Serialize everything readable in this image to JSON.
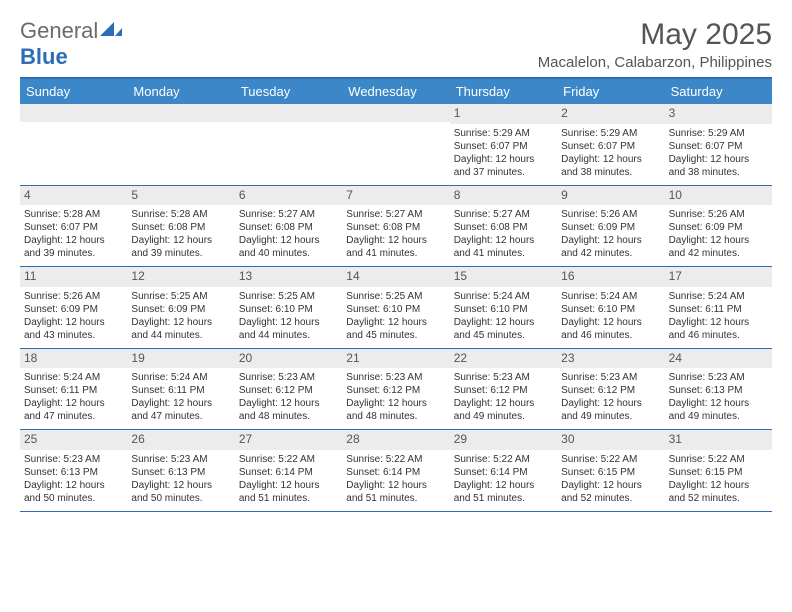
{
  "logo": {
    "general": "General",
    "blue": "Blue"
  },
  "title": "May 2025",
  "location": "Macalelon, Calabarzon, Philippines",
  "colors": {
    "header_bg": "#3b87c8",
    "border": "#2a6fb5",
    "daynum_bg": "#ececec",
    "text": "#333333"
  },
  "day_names": [
    "Sunday",
    "Monday",
    "Tuesday",
    "Wednesday",
    "Thursday",
    "Friday",
    "Saturday"
  ],
  "weeks": [
    [
      {
        "n": "",
        "sr": "",
        "ss": "",
        "dl": ""
      },
      {
        "n": "",
        "sr": "",
        "ss": "",
        "dl": ""
      },
      {
        "n": "",
        "sr": "",
        "ss": "",
        "dl": ""
      },
      {
        "n": "",
        "sr": "",
        "ss": "",
        "dl": ""
      },
      {
        "n": "1",
        "sr": "Sunrise: 5:29 AM",
        "ss": "Sunset: 6:07 PM",
        "dl": "Daylight: 12 hours and 37 minutes."
      },
      {
        "n": "2",
        "sr": "Sunrise: 5:29 AM",
        "ss": "Sunset: 6:07 PM",
        "dl": "Daylight: 12 hours and 38 minutes."
      },
      {
        "n": "3",
        "sr": "Sunrise: 5:29 AM",
        "ss": "Sunset: 6:07 PM",
        "dl": "Daylight: 12 hours and 38 minutes."
      }
    ],
    [
      {
        "n": "4",
        "sr": "Sunrise: 5:28 AM",
        "ss": "Sunset: 6:07 PM",
        "dl": "Daylight: 12 hours and 39 minutes."
      },
      {
        "n": "5",
        "sr": "Sunrise: 5:28 AM",
        "ss": "Sunset: 6:08 PM",
        "dl": "Daylight: 12 hours and 39 minutes."
      },
      {
        "n": "6",
        "sr": "Sunrise: 5:27 AM",
        "ss": "Sunset: 6:08 PM",
        "dl": "Daylight: 12 hours and 40 minutes."
      },
      {
        "n": "7",
        "sr": "Sunrise: 5:27 AM",
        "ss": "Sunset: 6:08 PM",
        "dl": "Daylight: 12 hours and 41 minutes."
      },
      {
        "n": "8",
        "sr": "Sunrise: 5:27 AM",
        "ss": "Sunset: 6:08 PM",
        "dl": "Daylight: 12 hours and 41 minutes."
      },
      {
        "n": "9",
        "sr": "Sunrise: 5:26 AM",
        "ss": "Sunset: 6:09 PM",
        "dl": "Daylight: 12 hours and 42 minutes."
      },
      {
        "n": "10",
        "sr": "Sunrise: 5:26 AM",
        "ss": "Sunset: 6:09 PM",
        "dl": "Daylight: 12 hours and 42 minutes."
      }
    ],
    [
      {
        "n": "11",
        "sr": "Sunrise: 5:26 AM",
        "ss": "Sunset: 6:09 PM",
        "dl": "Daylight: 12 hours and 43 minutes."
      },
      {
        "n": "12",
        "sr": "Sunrise: 5:25 AM",
        "ss": "Sunset: 6:09 PM",
        "dl": "Daylight: 12 hours and 44 minutes."
      },
      {
        "n": "13",
        "sr": "Sunrise: 5:25 AM",
        "ss": "Sunset: 6:10 PM",
        "dl": "Daylight: 12 hours and 44 minutes."
      },
      {
        "n": "14",
        "sr": "Sunrise: 5:25 AM",
        "ss": "Sunset: 6:10 PM",
        "dl": "Daylight: 12 hours and 45 minutes."
      },
      {
        "n": "15",
        "sr": "Sunrise: 5:24 AM",
        "ss": "Sunset: 6:10 PM",
        "dl": "Daylight: 12 hours and 45 minutes."
      },
      {
        "n": "16",
        "sr": "Sunrise: 5:24 AM",
        "ss": "Sunset: 6:10 PM",
        "dl": "Daylight: 12 hours and 46 minutes."
      },
      {
        "n": "17",
        "sr": "Sunrise: 5:24 AM",
        "ss": "Sunset: 6:11 PM",
        "dl": "Daylight: 12 hours and 46 minutes."
      }
    ],
    [
      {
        "n": "18",
        "sr": "Sunrise: 5:24 AM",
        "ss": "Sunset: 6:11 PM",
        "dl": "Daylight: 12 hours and 47 minutes."
      },
      {
        "n": "19",
        "sr": "Sunrise: 5:24 AM",
        "ss": "Sunset: 6:11 PM",
        "dl": "Daylight: 12 hours and 47 minutes."
      },
      {
        "n": "20",
        "sr": "Sunrise: 5:23 AM",
        "ss": "Sunset: 6:12 PM",
        "dl": "Daylight: 12 hours and 48 minutes."
      },
      {
        "n": "21",
        "sr": "Sunrise: 5:23 AM",
        "ss": "Sunset: 6:12 PM",
        "dl": "Daylight: 12 hours and 48 minutes."
      },
      {
        "n": "22",
        "sr": "Sunrise: 5:23 AM",
        "ss": "Sunset: 6:12 PM",
        "dl": "Daylight: 12 hours and 49 minutes."
      },
      {
        "n": "23",
        "sr": "Sunrise: 5:23 AM",
        "ss": "Sunset: 6:12 PM",
        "dl": "Daylight: 12 hours and 49 minutes."
      },
      {
        "n": "24",
        "sr": "Sunrise: 5:23 AM",
        "ss": "Sunset: 6:13 PM",
        "dl": "Daylight: 12 hours and 49 minutes."
      }
    ],
    [
      {
        "n": "25",
        "sr": "Sunrise: 5:23 AM",
        "ss": "Sunset: 6:13 PM",
        "dl": "Daylight: 12 hours and 50 minutes."
      },
      {
        "n": "26",
        "sr": "Sunrise: 5:23 AM",
        "ss": "Sunset: 6:13 PM",
        "dl": "Daylight: 12 hours and 50 minutes."
      },
      {
        "n": "27",
        "sr": "Sunrise: 5:22 AM",
        "ss": "Sunset: 6:14 PM",
        "dl": "Daylight: 12 hours and 51 minutes."
      },
      {
        "n": "28",
        "sr": "Sunrise: 5:22 AM",
        "ss": "Sunset: 6:14 PM",
        "dl": "Daylight: 12 hours and 51 minutes."
      },
      {
        "n": "29",
        "sr": "Sunrise: 5:22 AM",
        "ss": "Sunset: 6:14 PM",
        "dl": "Daylight: 12 hours and 51 minutes."
      },
      {
        "n": "30",
        "sr": "Sunrise: 5:22 AM",
        "ss": "Sunset: 6:15 PM",
        "dl": "Daylight: 12 hours and 52 minutes."
      },
      {
        "n": "31",
        "sr": "Sunrise: 5:22 AM",
        "ss": "Sunset: 6:15 PM",
        "dl": "Daylight: 12 hours and 52 minutes."
      }
    ]
  ]
}
